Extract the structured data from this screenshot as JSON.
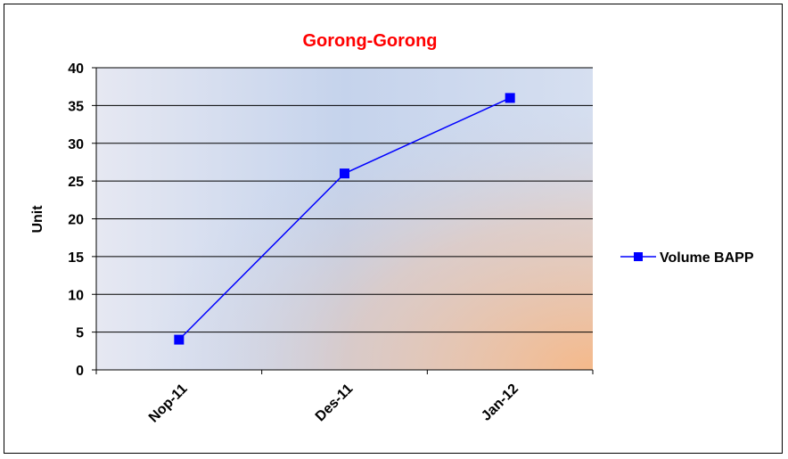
{
  "chart_data": {
    "type": "line",
    "title": "Gorong-Gorong",
    "title_color": "#FF0000",
    "xlabel": "",
    "ylabel": "Unit",
    "categories": [
      "Nop-11",
      "Des-11",
      "Jan-12"
    ],
    "series": [
      {
        "name": "Volume BAPP",
        "values": [
          4,
          26,
          36
        ],
        "color": "#0000FF",
        "marker": "square"
      }
    ],
    "ylim": [
      0,
      40
    ],
    "yticks": [
      "0",
      "5",
      "10",
      "15",
      "20",
      "25",
      "30",
      "35",
      "40"
    ],
    "grid": true,
    "legend": "right"
  }
}
